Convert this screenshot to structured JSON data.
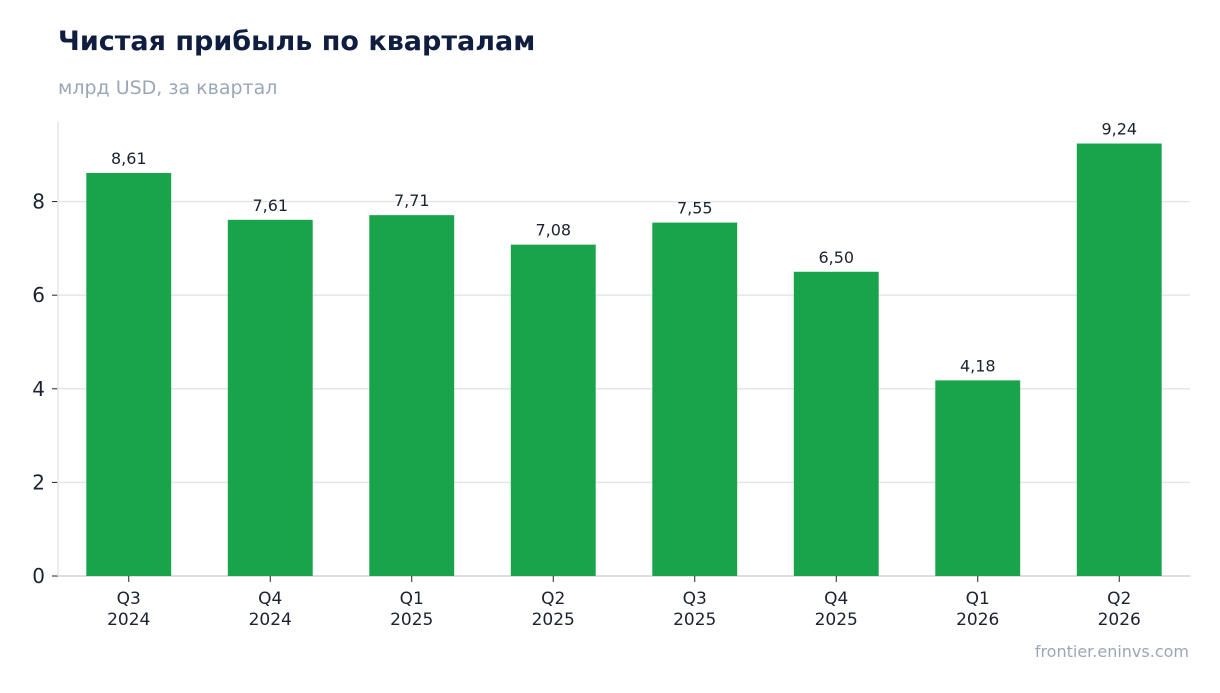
{
  "header": {
    "title": "Чистая прибыль по кварталам",
    "subtitle": "млрд USD, за квартал"
  },
  "footer": {
    "source": "frontier.eninvs.com"
  },
  "colors": {
    "bar": "#19a34a",
    "grid": "#e3e6ea",
    "axis": "#cfd4da"
  },
  "chart_data": {
    "type": "bar",
    "title": "Чистая прибыль по кварталам",
    "subtitle": "млрд USD, за квартал",
    "categories": [
      [
        "Q3",
        "2024"
      ],
      [
        "Q4",
        "2024"
      ],
      [
        "Q1",
        "2025"
      ],
      [
        "Q2",
        "2025"
      ],
      [
        "Q3",
        "2025"
      ],
      [
        "Q4",
        "2025"
      ],
      [
        "Q1",
        "2026"
      ],
      [
        "Q2",
        "2026"
      ]
    ],
    "values": [
      8.61,
      7.61,
      7.71,
      7.08,
      7.55,
      6.5,
      4.18,
      9.24
    ],
    "value_labels": [
      "8,61",
      "7,61",
      "7,71",
      "7,08",
      "7,55",
      "6,50",
      "4,18",
      "9,24"
    ],
    "yticks": [
      0,
      2,
      4,
      6,
      8
    ],
    "ylim": [
      0,
      9.7
    ],
    "xlabel": "",
    "ylabel": "",
    "grid": true,
    "legend": false
  }
}
